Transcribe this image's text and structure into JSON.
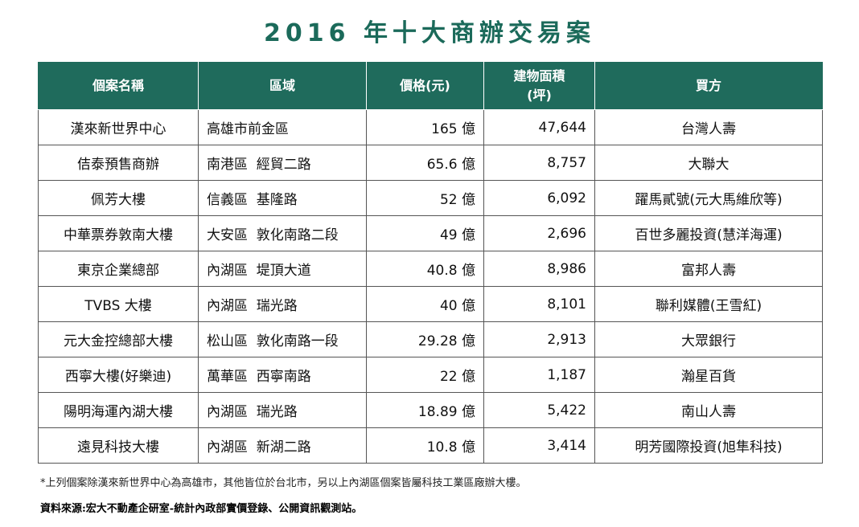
{
  "title": "2016 年十大商辦交易案",
  "colors": {
    "header_bg": "#1f6b5c",
    "title_color": "#1b6a5a",
    "header_text": "#ffffff"
  },
  "table": {
    "headers": {
      "name": "個案名稱",
      "area": "區域",
      "price": "價格(元)",
      "floor_line1": "建物面積",
      "floor_line2": "(坪)",
      "buyer": "買方"
    },
    "rows": [
      {
        "name": "漢來新世界中心",
        "area": "高雄市前金區",
        "price": "165 億",
        "floor": "47,644",
        "buyer": "台灣人壽"
      },
      {
        "name": "佶泰預售商辦",
        "area": "南港區  經貿二路",
        "price": "65.6 億",
        "floor": "8,757",
        "buyer": "大聯大"
      },
      {
        "name": "佩芳大樓",
        "area": "信義區  基隆路",
        "price": "52 億",
        "floor": "6,092",
        "buyer": "躍馬貳號(元大馬維欣等)"
      },
      {
        "name": "中華票券敦南大樓",
        "area": "大安區  敦化南路二段",
        "price": "49 億",
        "floor": "2,696",
        "buyer": "百世多麗投資(慧洋海運)"
      },
      {
        "name": "東京企業總部",
        "area": "內湖區  堤頂大道",
        "price": "40.8 億",
        "floor": "8,986",
        "buyer": "富邦人壽"
      },
      {
        "name": "TVBS 大樓",
        "area": "內湖區  瑞光路",
        "price": "40 億",
        "floor": "8,101",
        "buyer": "聯利媒體(王雪紅)"
      },
      {
        "name": "元大金控總部大樓",
        "area": "松山區  敦化南路一段",
        "price": "29.28 億",
        "floor": "2,913",
        "buyer": "大眾銀行"
      },
      {
        "name": "西寧大樓(好樂迪)",
        "area": "萬華區  西寧南路",
        "price": "22 億",
        "floor": "1,187",
        "buyer": "瀚星百貨"
      },
      {
        "name": "陽明海運內湖大樓",
        "area": "內湖區  瑞光路",
        "price": "18.89 億",
        "floor": "5,422",
        "buyer": "南山人壽"
      },
      {
        "name": "遠見科技大樓",
        "area": "內湖區  新湖二路",
        "price": "10.8 億",
        "floor": "3,414",
        "buyer": "明芳國際投資(旭隼科技)"
      }
    ]
  },
  "footnote": "*上列個案除漢來新世界中心為高雄市，其他皆位於台北市，另以上內湖區個案皆屬科技工業區廠辦大樓。",
  "source": "資料來源:宏大不動產企研室-統計內政部實價登錄、公開資訊觀測站。"
}
